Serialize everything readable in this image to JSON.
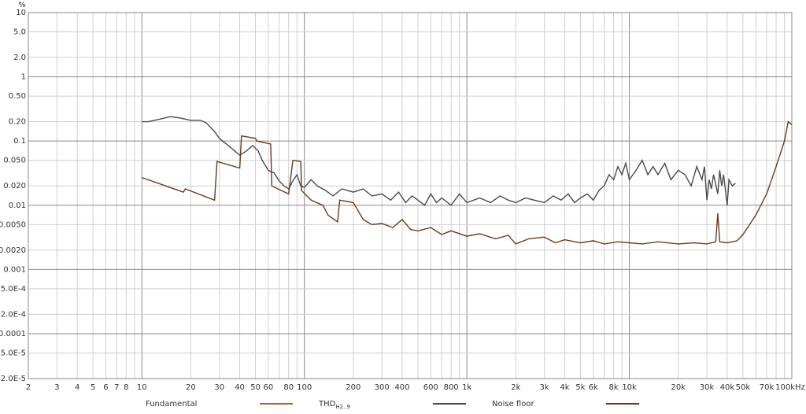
{
  "chart_data": {
    "type": "line",
    "ylabel": "%",
    "log_x": true,
    "log_y": true,
    "grid": true,
    "xlim": [
      2,
      100000
    ],
    "ylim": [
      2e-05,
      10
    ],
    "xticks": [
      2,
      3,
      4,
      5,
      6,
      7,
      8,
      10,
      20,
      30,
      40,
      50,
      60,
      80,
      100,
      200,
      300,
      400,
      600,
      800,
      {
        "value": 1000,
        "label": "1k"
      },
      {
        "value": 2000,
        "label": "2k"
      },
      {
        "value": 3000,
        "label": "3k"
      },
      {
        "value": 4000,
        "label": "4k"
      },
      {
        "value": 5000,
        "label": "5k"
      },
      {
        "value": 6000,
        "label": "6k"
      },
      {
        "value": 8000,
        "label": "8k"
      },
      {
        "value": 10000,
        "label": "10k"
      },
      {
        "value": 20000,
        "label": "20k"
      },
      {
        "value": 30000,
        "label": "30k"
      },
      {
        "value": 40000,
        "label": "40k"
      },
      {
        "value": 50000,
        "label": "50k"
      },
      {
        "value": 70000,
        "label": "70k"
      },
      {
        "value": 100000,
        "label": "100kHz"
      }
    ],
    "xminor": [
      9,
      70,
      90,
      500,
      700,
      900,
      7000,
      9000,
      60000,
      80000,
      90000
    ],
    "yticks": [
      10,
      {
        "value": 5,
        "label": "5.0"
      },
      {
        "value": 2,
        "label": "2.0"
      },
      1,
      {
        "value": 0.5,
        "label": "0.50"
      },
      {
        "value": 0.2,
        "label": "0.20"
      },
      0.1,
      {
        "value": 0.05,
        "label": "0.050"
      },
      {
        "value": 0.02,
        "label": "0.020"
      },
      0.01,
      {
        "value": 0.005,
        "label": "0.0050"
      },
      {
        "value": 0.002,
        "label": "0.0020"
      },
      0.001,
      {
        "value": 0.0005,
        "label": "5.0E-4"
      },
      {
        "value": 0.0002,
        "label": "2.0E-4"
      },
      0.0001,
      {
        "value": 5e-05,
        "label": "5.0E-5"
      },
      {
        "value": 2e-05,
        "label": "2.0E-5"
      }
    ],
    "series": [
      {
        "name": "Fundamental",
        "color": "#b0622a",
        "x": [],
        "values": []
      },
      {
        "name": "THD",
        "name_sub": "H2..9",
        "color": "#4a4a4a",
        "x": [
          10,
          11,
          13,
          15,
          17,
          20,
          23,
          25,
          28,
          30,
          35,
          40,
          44,
          48,
          52,
          55,
          60,
          65,
          70,
          75,
          80,
          85,
          90,
          95,
          100,
          110,
          120,
          135,
          150,
          170,
          200,
          230,
          260,
          300,
          340,
          380,
          420,
          460,
          500,
          550,
          600,
          650,
          700,
          800,
          900,
          1000,
          1200,
          1400,
          1600,
          1800,
          2000,
          2300,
          2600,
          3000,
          3400,
          3800,
          4200,
          4600,
          5000,
          5500,
          6000,
          6500,
          7000,
          7500,
          8000,
          8500,
          9000,
          9500,
          10000,
          11000,
          12000,
          13000,
          14000,
          15000,
          16500,
          18000,
          20000,
          22000,
          24000,
          26000,
          28000,
          29000,
          30000,
          31000,
          32000,
          33000,
          35000,
          36000,
          37000,
          38000,
          40000,
          41000,
          43000,
          45000
        ],
        "values": [
          0.2,
          0.2,
          0.22,
          0.24,
          0.23,
          0.21,
          0.21,
          0.19,
          0.14,
          0.11,
          0.08,
          0.06,
          0.07,
          0.085,
          0.07,
          0.05,
          0.035,
          0.032,
          0.024,
          0.02,
          0.018,
          0.024,
          0.03,
          0.02,
          0.019,
          0.025,
          0.02,
          0.017,
          0.014,
          0.018,
          0.016,
          0.018,
          0.014,
          0.015,
          0.012,
          0.016,
          0.011,
          0.014,
          0.012,
          0.01,
          0.015,
          0.011,
          0.013,
          0.01,
          0.015,
          0.011,
          0.013,
          0.011,
          0.014,
          0.012,
          0.011,
          0.013,
          0.012,
          0.011,
          0.014,
          0.012,
          0.015,
          0.011,
          0.013,
          0.015,
          0.012,
          0.017,
          0.02,
          0.03,
          0.025,
          0.04,
          0.03,
          0.045,
          0.025,
          0.035,
          0.05,
          0.03,
          0.04,
          0.03,
          0.045,
          0.025,
          0.035,
          0.03,
          0.02,
          0.04,
          0.025,
          0.04,
          0.012,
          0.025,
          0.018,
          0.03,
          0.015,
          0.035,
          0.02,
          0.03,
          0.01,
          0.025,
          0.02,
          0.022
        ]
      },
      {
        "name": "Noise floor",
        "color": "#6b3a1e",
        "x": [
          10,
          14,
          18,
          18.5,
          28,
          29,
          40,
          41,
          50,
          51,
          62,
          63,
          72,
          80,
          85,
          95,
          96,
          110,
          130,
          140,
          160,
          165,
          200,
          230,
          260,
          300,
          350,
          400,
          450,
          500,
          600,
          700,
          800,
          1000,
          1200,
          1500,
          1800,
          2000,
          2400,
          3000,
          3500,
          4000,
          5000,
          6000,
          7000,
          8500,
          10000,
          12000,
          15000,
          20000,
          25000,
          30000,
          34000,
          35000,
          36000,
          40000,
          43000,
          46000,
          50000,
          60000,
          70000,
          80000,
          90000,
          95000,
          100000
        ],
        "values": [
          0.027,
          0.02,
          0.016,
          0.018,
          0.012,
          0.048,
          0.038,
          0.12,
          0.11,
          0.1,
          0.09,
          0.02,
          0.017,
          0.015,
          0.05,
          0.048,
          0.017,
          0.012,
          0.01,
          0.007,
          0.0055,
          0.012,
          0.011,
          0.006,
          0.005,
          0.0052,
          0.0045,
          0.006,
          0.0042,
          0.004,
          0.0045,
          0.0035,
          0.004,
          0.0033,
          0.0036,
          0.003,
          0.0034,
          0.0025,
          0.003,
          0.0032,
          0.0026,
          0.0029,
          0.0026,
          0.0028,
          0.0025,
          0.0027,
          0.0026,
          0.0025,
          0.0027,
          0.0025,
          0.0026,
          0.0025,
          0.0027,
          0.0075,
          0.0027,
          0.0026,
          0.0027,
          0.0028,
          0.0035,
          0.007,
          0.015,
          0.04,
          0.1,
          0.2,
          0.18
        ]
      }
    ]
  }
}
